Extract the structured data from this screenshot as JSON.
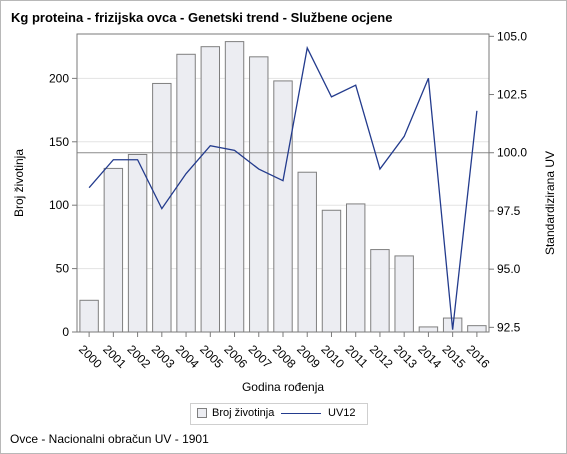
{
  "window": {
    "title": "Kg proteina - frizijska ovca - Genetski trend - Službene ocjene",
    "footnote": "Ovce - Nacionalni obračun UV - 1901"
  },
  "colors": {
    "bar_fill": "#ecedf2",
    "bar_stroke": "#7f7f7f",
    "line": "#233b8d",
    "grid": "#e3e3e3",
    "reference_line": "#8c8c8c",
    "axis": "#7a7a7a"
  },
  "legend": {
    "placement": "bottom-center",
    "items": [
      {
        "label": "Broj životinja",
        "kind": "bar"
      },
      {
        "label": "UV12",
        "kind": "line"
      }
    ]
  },
  "chart_data": {
    "type": "bar",
    "title": "Kg proteina - frizijska ovca - Genetski trend - Službene ocjene",
    "xlabel": "Godina rođenja",
    "ylabel": "Broj životinja",
    "y2label": "Standardizirana UV",
    "categories": [
      "2000",
      "2001",
      "2002",
      "2003",
      "2004",
      "2005",
      "2006",
      "2007",
      "2008",
      "2009",
      "2010",
      "2011",
      "2012",
      "2013",
      "2014",
      "2015",
      "2016"
    ],
    "series": [
      {
        "name": "Broj životinja",
        "type": "bar",
        "axis": "left",
        "values": [
          25,
          129,
          140,
          196,
          219,
          225,
          229,
          217,
          198,
          126,
          96,
          101,
          65,
          60,
          4,
          11,
          5
        ]
      },
      {
        "name": "UV12",
        "type": "line",
        "axis": "right",
        "values": [
          98.5,
          99.7,
          99.7,
          97.6,
          99.1,
          100.3,
          100.1,
          99.3,
          98.8,
          104.5,
          102.4,
          102.9,
          99.3,
          100.7,
          103.2,
          92.4,
          101.8
        ]
      }
    ],
    "ylim": [
      0,
      235
    ],
    "y_ticks": [
      0,
      50,
      100,
      150,
      200
    ],
    "y2lim": [
      92.3,
      105.1
    ],
    "y2_ticks": [
      "92.5",
      "95.0",
      "97.5",
      "100.0",
      "102.5",
      "105.0"
    ],
    "reference_line_y2": 100.0,
    "grid": true
  }
}
